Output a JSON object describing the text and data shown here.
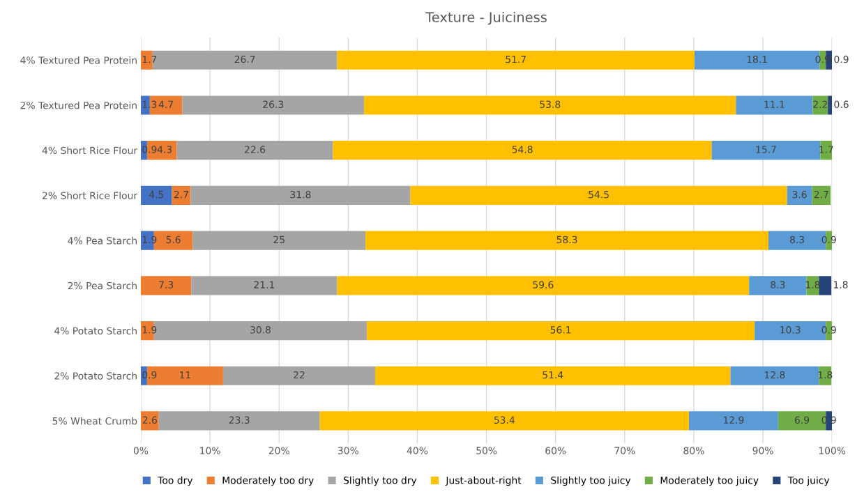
{
  "chart_data": {
    "type": "bar",
    "title": "Texture - Juiciness",
    "orientation": "horizontal",
    "stacked": true,
    "data_labels": true,
    "grid": "x",
    "legend": "bottom",
    "categories": [
      "4% Textured Pea Protein",
      "2% Textured Pea Protein",
      "4% Short Rice Flour",
      "2% Short Rice Flour",
      "4% Pea Starch",
      "2% Pea Starch",
      "4% Potato Starch",
      "2% Potato Starch",
      "5% Wheat Crumb"
    ],
    "xlim": [
      0,
      100
    ],
    "xticks": [
      {
        "value": 0,
        "label": "0%"
      },
      {
        "value": 10,
        "label": "10%"
      },
      {
        "value": 20,
        "label": "20%"
      },
      {
        "value": 30,
        "label": "30%"
      },
      {
        "value": 40,
        "label": "40%"
      },
      {
        "value": 50,
        "label": "50%"
      },
      {
        "value": 60,
        "label": "60%"
      },
      {
        "value": 70,
        "label": "70%"
      },
      {
        "value": 80,
        "label": "80%"
      },
      {
        "value": 90,
        "label": "90%"
      },
      {
        "value": 100,
        "label": "100%"
      }
    ],
    "series": [
      {
        "name": "Too dry",
        "color": "#4472c4",
        "values": [
          null,
          1.3,
          0.9,
          4.5,
          1.9,
          null,
          null,
          0.9,
          null
        ]
      },
      {
        "name": "Moderately too dry",
        "color": "#ed7d31",
        "values": [
          1.7,
          4.7,
          4.3,
          2.7,
          5.6,
          7.3,
          1.9,
          11,
          2.6
        ]
      },
      {
        "name": "Slightly too dry",
        "color": "#a5a5a5",
        "values": [
          26.7,
          26.3,
          22.6,
          31.8,
          25,
          21.1,
          30.8,
          22,
          23.3
        ]
      },
      {
        "name": "Just-about-right",
        "color": "#ffc000",
        "values": [
          51.7,
          53.8,
          54.8,
          54.5,
          58.3,
          59.6,
          56.1,
          51.4,
          53.4
        ]
      },
      {
        "name": "Slightly too juicy",
        "color": "#5b9bd5",
        "values": [
          18.1,
          11.1,
          15.7,
          3.6,
          8.3,
          8.3,
          10.3,
          12.8,
          12.9
        ]
      },
      {
        "name": "Moderately too juicy",
        "color": "#70ad47",
        "values": [
          0.9,
          2.2,
          1.7,
          2.7,
          0.9,
          1.8,
          0.9,
          1.8,
          6.9
        ]
      },
      {
        "name": "Too juicy",
        "color": "#264478",
        "values": [
          0.9,
          0.6,
          null,
          null,
          null,
          1.8,
          null,
          null,
          0.9
        ]
      }
    ]
  }
}
